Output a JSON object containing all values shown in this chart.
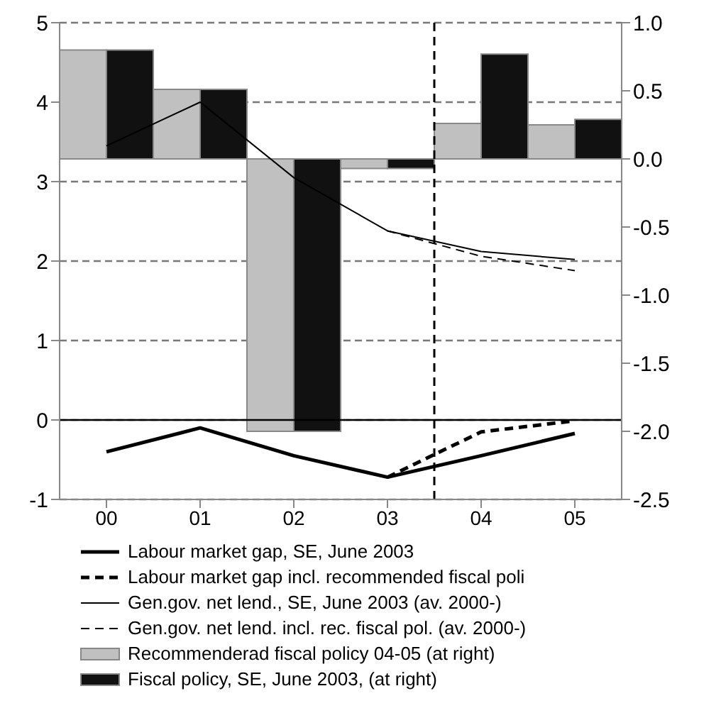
{
  "chart_data": {
    "type": "line",
    "categories": [
      "00",
      "01",
      "02",
      "03",
      "04",
      "05"
    ],
    "series": [
      {
        "name": "Labour market gap, SE, June 2003",
        "color": "#000000",
        "line_style": "solid",
        "values": [
          -0.4,
          -0.1,
          -0.45,
          -0.72,
          -0.45,
          -0.17
        ]
      },
      {
        "name": "Labour market gap incl. recommended fiscal poli",
        "color": "#000000",
        "line_style": "dashed",
        "values": [
          null,
          null,
          null,
          -0.72,
          -0.15,
          -0.01
        ]
      },
      {
        "name": "Gen.gov. net lend., SE, June 2003 (av. 2000-)",
        "color": "#000000",
        "line_style": "solid",
        "values": [
          3.45,
          4.0,
          3.05,
          2.38,
          2.12,
          2.02
        ]
      },
      {
        "name": "Gen.gov. net lend. incl. rec. fiscal pol. (av. 2000-)",
        "color": "#000000",
        "line_style": "dashed",
        "values": [
          null,
          null,
          null,
          2.38,
          2.06,
          1.88
        ]
      },
      {
        "name": "Recommenderad fiscal policy 04-05 (at right)",
        "type": "bar",
        "axis": "y2",
        "color": "#c0c0c0",
        "values": [
          0.8,
          0.51,
          -2.0,
          -0.07,
          0.26,
          0.25
        ]
      },
      {
        "name": "Fiscal policy, SE, June 2003, (at right)",
        "type": "bar",
        "axis": "y2",
        "color": "#111111",
        "values": [
          0.8,
          0.51,
          -2.0,
          -0.07,
          0.77,
          0.29
        ]
      }
    ],
    "ylim": [
      -1,
      5
    ],
    "yticks": [
      -1,
      0,
      1,
      2,
      3,
      4,
      5
    ],
    "y2lim": [
      -2.5,
      1.0
    ],
    "y2ticks": [
      {
        "value": -2.5,
        "label": "-2.5"
      },
      {
        "value": -2,
        "label": "-2.0"
      },
      {
        "value": -1.5,
        "label": "-1.5"
      },
      {
        "value": -1,
        "label": "-1.0"
      },
      {
        "value": -0.5,
        "label": "-0.5"
      },
      {
        "value": 0,
        "label": "0.0"
      },
      {
        "value": 0.5,
        "label": "0.5"
      },
      {
        "value": 1,
        "label": "1.0"
      }
    ],
    "ref_lines": [
      {
        "axis": "y",
        "value": 0,
        "color": "#000000",
        "line_style": "solid"
      },
      {
        "axis": "x",
        "value": "04",
        "color": "#000000",
        "line_style": "dashed"
      }
    ],
    "grid": "y",
    "legend": "bottom",
    "marker": "none"
  }
}
